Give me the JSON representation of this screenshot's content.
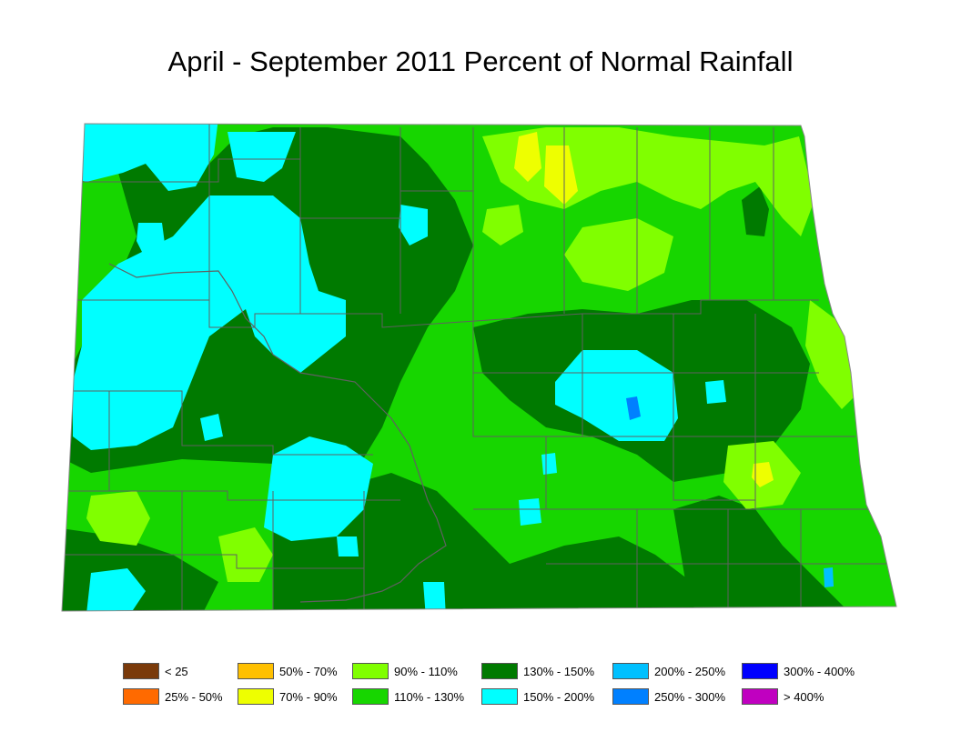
{
  "title": "April - September 2011 Percent of Normal Rainfall",
  "colors": {
    "lt25": "#7a3a0a",
    "p25_50": "#ff6a00",
    "p50_70": "#ffc000",
    "p70_90": "#eeff00",
    "p90_110": "#80ff00",
    "p110_130": "#17d600",
    "p130_150": "#007a00",
    "p150_200": "#00ffff",
    "p200_250": "#00c0ff",
    "p250_300": "#0080ff",
    "p300_400": "#0000ff",
    "gt400": "#c000c0",
    "county_line": "#606060"
  },
  "legend": [
    {
      "label": "< 25",
      "color": "#7a3a0a"
    },
    {
      "label": "25% - 50%",
      "color": "#ff6a00"
    },
    {
      "label": "50% - 70%",
      "color": "#ffc000"
    },
    {
      "label": "70% - 90%",
      "color": "#eeff00"
    },
    {
      "label": "90% - 110%",
      "color": "#80ff00"
    },
    {
      "label": "110% - 130%",
      "color": "#17d600"
    },
    {
      "label": "130% - 150%",
      "color": "#007a00"
    },
    {
      "label": "150% - 200%",
      "color": "#00ffff"
    },
    {
      "label": "200% - 250%",
      "color": "#00c0ff"
    },
    {
      "label": "250% - 300%",
      "color": "#0080ff"
    },
    {
      "label": "300% - 400%",
      "color": "#0000ff"
    },
    {
      "label": "> 400%",
      "color": "#c000c0"
    }
  ]
}
